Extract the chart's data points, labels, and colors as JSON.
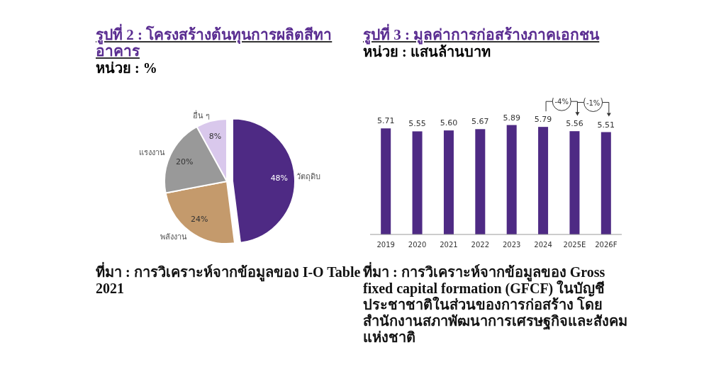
{
  "chart_data": [
    {
      "type": "pie",
      "title": "รูปที่ 2 : โครงสร้างต้นทุนการผลิตสีทาอาคาร",
      "subtitle": "หน่วย : %",
      "categories": [
        "วัตถุดิบ",
        "พลังงาน",
        "แรงงาน",
        "อื่น ๆ"
      ],
      "values": [
        48,
        24,
        20,
        8
      ],
      "value_labels": [
        "48%",
        "24%",
        "20%",
        "8%"
      ],
      "colors": [
        "#4e2a84",
        "#c49a6c",
        "#999999",
        "#d9c8ec"
      ],
      "annotations": [
        "ที่มา : การวิเคราะห์จากข้อมูลของ I-O Table 2021"
      ]
    },
    {
      "type": "bar",
      "title": "รูปที่ 3 : มูลค่าการก่อสร้างภาคเอกชน",
      "subtitle": "หน่วย : แสนล้านบาท",
      "categories": [
        "2019",
        "2020",
        "2021",
        "2022",
        "2023",
        "2024",
        "2025E",
        "2026F"
      ],
      "values": [
        5.71,
        5.55,
        5.6,
        5.67,
        5.89,
        5.79,
        5.56,
        5.51
      ],
      "value_labels": [
        "5.71",
        "5.55",
        "5.60",
        "5.67",
        "5.89",
        "5.79",
        "5.56",
        "5.51"
      ],
      "color": "#4e2a84",
      "tick_labels": "x",
      "annotations": [
        "-4%",
        "-1%",
        "ที่มา : การวิเคราะห์จากข้อมูลของ Gross fixed capital formation (GFCF) ในบัญชีประชาชาติในส่วนของการก่อสร้าง โดยสำนักงานสภาพัฒนาการเศรษฐกิจและสังคมแห่งชาติ"
      ]
    }
  ]
}
